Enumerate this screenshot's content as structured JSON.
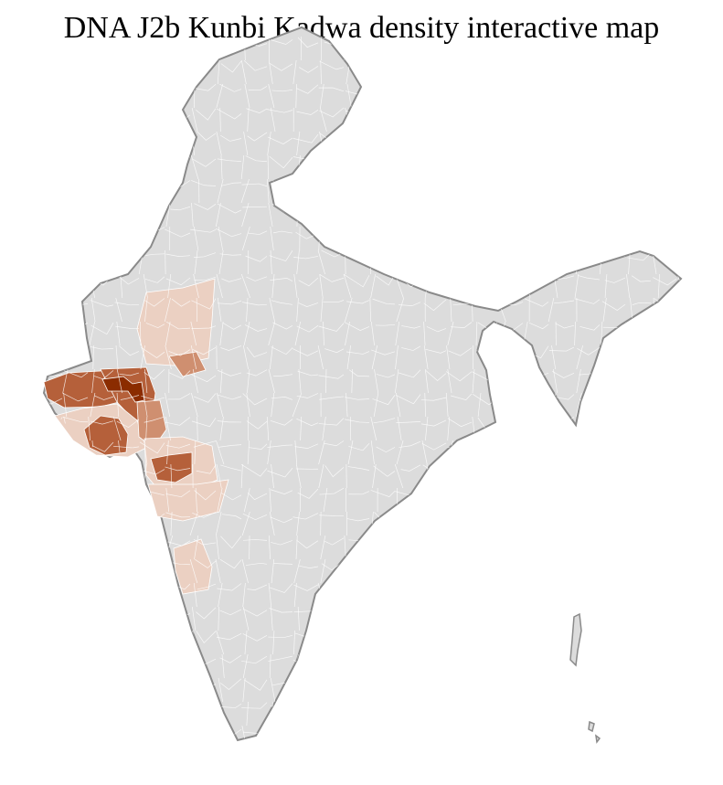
{
  "title": "DNA J2b Kunbi Kadwa density interactive map",
  "colors": {
    "base_fill": "#dcdcdc",
    "border": "#8a8a8a",
    "district_line": "#ffffff",
    "density_very_high": "#8b2c00",
    "density_high": "#b5603a",
    "density_medium": "#cf8f70",
    "density_low": "#ebd0c2"
  }
}
